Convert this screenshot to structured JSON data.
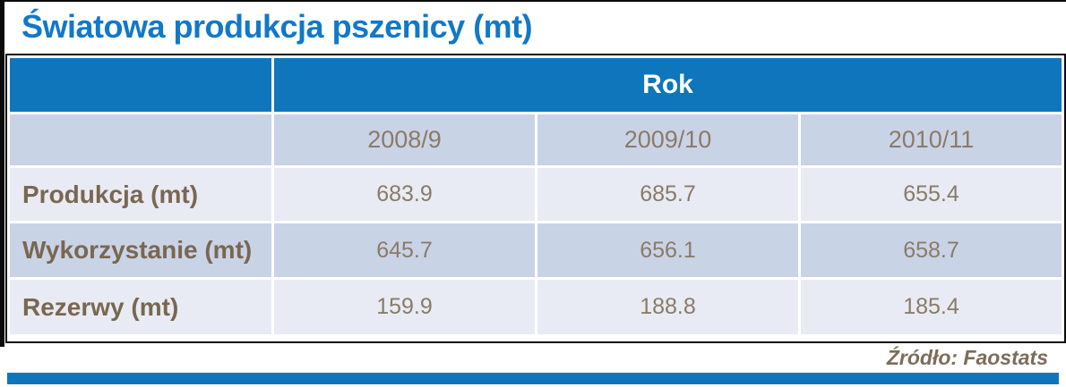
{
  "title": "Światowa produkcja pszenicy (mt)",
  "chart_data": {
    "type": "table",
    "title": "Światowa produkcja pszenicy (mt)",
    "column_group_header": "Rok",
    "categories": [
      "2008/9",
      "2009/10",
      "2010/11"
    ],
    "series": [
      {
        "name": "Produkcja (mt)",
        "values": [
          683.9,
          685.7,
          655.4
        ]
      },
      {
        "name": "Wykorzystanie (mt)",
        "values": [
          645.7,
          656.1,
          658.7
        ]
      },
      {
        "name": "Rezerwy (mt)",
        "values": [
          159.9,
          188.8,
          185.4
        ]
      }
    ],
    "source": "Źródło: Faostats",
    "layout_hints": {
      "group_header_spans_value_columns": true,
      "alternating_row_shading": true
    }
  },
  "colors": {
    "title_text": "#1278C8",
    "header_bg": "#0F76BC",
    "header_text": "#FFFFFF",
    "row_alt_bg": "#C9D3E6",
    "row_light_bg": "#E8EBF3",
    "value_text": "#8A7B68",
    "label_text": "#796751",
    "source_text": "#7C6C58",
    "table_border": "#0B0B0B",
    "bottom_bar": "#0F76BC"
  }
}
